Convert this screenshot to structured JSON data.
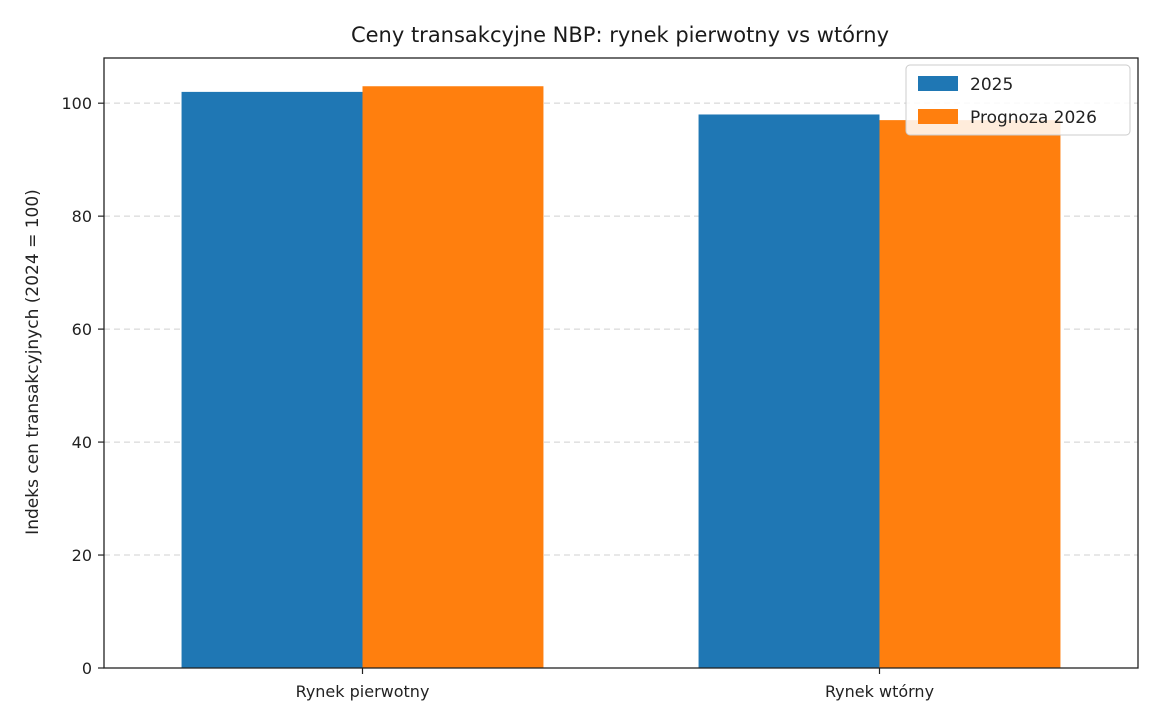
{
  "chart_data": {
    "type": "bar",
    "title": "Ceny transakcyjne NBP: rynek pierwotny vs wtórny",
    "xlabel": "",
    "ylabel": "Indeks cen transakcyjnych (2024 = 100)",
    "categories": [
      "Rynek pierwotny",
      "Rynek wtórny"
    ],
    "series": [
      {
        "name": "2025",
        "values": [
          102,
          98
        ],
        "color": "#1f77b4"
      },
      {
        "name": "Prognoza 2026",
        "values": [
          103,
          97
        ],
        "color": "#ff7f0e"
      }
    ],
    "ylim": [
      0,
      108
    ],
    "yticks": [
      0,
      20,
      40,
      60,
      80,
      100
    ],
    "grid": "horizontal-dashed",
    "legend_position": "top-right"
  }
}
